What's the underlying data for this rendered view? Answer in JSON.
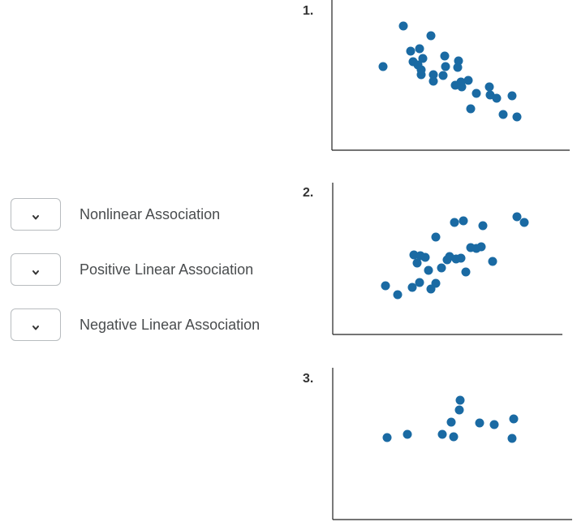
{
  "matching": {
    "options": [
      {
        "label": "Nonlinear Association",
        "selected": ""
      },
      {
        "label": "Positive Linear Association",
        "selected": ""
      },
      {
        "label": "Negative Linear Association",
        "selected": ""
      }
    ]
  },
  "plots": [
    {
      "number": "1."
    },
    {
      "number": "2."
    },
    {
      "number": "3."
    }
  ],
  "colors": {
    "dot": "#1a6aa3",
    "axis": "#222222",
    "select_border": "#b8bcbf"
  },
  "icons": {
    "select": "chevron-down-icon"
  },
  "chart_data": [
    {
      "type": "scatter",
      "title": "",
      "xlabel": "",
      "ylabel": "",
      "points": [
        [
          67,
          82
        ],
        [
          92,
          32
        ],
        [
          126,
          44
        ],
        [
          101,
          63
        ],
        [
          112,
          60
        ],
        [
          104,
          76
        ],
        [
          116,
          72
        ],
        [
          110,
          80
        ],
        [
          114,
          86
        ],
        [
          114,
          92
        ],
        [
          143,
          69
        ],
        [
          129,
          92
        ],
        [
          129,
          100
        ],
        [
          141,
          93
        ],
        [
          144,
          82
        ],
        [
          160,
          75
        ],
        [
          159,
          83
        ],
        [
          156,
          105
        ],
        [
          163,
          101
        ],
        [
          164,
          107
        ],
        [
          172,
          99
        ],
        [
          182,
          115
        ],
        [
          175,
          134
        ],
        [
          198,
          107
        ],
        [
          199,
          117
        ],
        [
          207,
          121
        ],
        [
          226,
          118
        ],
        [
          215,
          141
        ],
        [
          232,
          144
        ]
      ]
    },
    {
      "type": "scatter",
      "title": "",
      "xlabel": "",
      "ylabel": "",
      "points": [
        [
          155,
          49
        ],
        [
          166,
          47
        ],
        [
          190,
          53
        ],
        [
          232,
          42
        ],
        [
          241,
          49
        ],
        [
          132,
          67
        ],
        [
          105,
          89
        ],
        [
          113,
          90
        ],
        [
          119,
          92
        ],
        [
          109,
          99
        ],
        [
          149,
          91
        ],
        [
          146,
          95
        ],
        [
          157,
          94
        ],
        [
          163,
          93
        ],
        [
          175,
          80
        ],
        [
          182,
          81
        ],
        [
          188,
          79
        ],
        [
          202,
          97
        ],
        [
          139,
          105
        ],
        [
          123,
          108
        ],
        [
          169,
          110
        ],
        [
          112,
          123
        ],
        [
          103,
          129
        ],
        [
          132,
          124
        ],
        [
          126,
          131
        ],
        [
          70,
          127
        ],
        [
          85,
          138
        ]
      ]
    },
    {
      "type": "scatter",
      "title": "",
      "xlabel": "",
      "ylabel": "",
      "points": [
        [
          162,
          40
        ],
        [
          161,
          52
        ],
        [
          151,
          67
        ],
        [
          186,
          68
        ],
        [
          204,
          70
        ],
        [
          228,
          63
        ],
        [
          72,
          86
        ],
        [
          97,
          82
        ],
        [
          140,
          82
        ],
        [
          154,
          85
        ],
        [
          226,
          87
        ]
      ]
    }
  ]
}
